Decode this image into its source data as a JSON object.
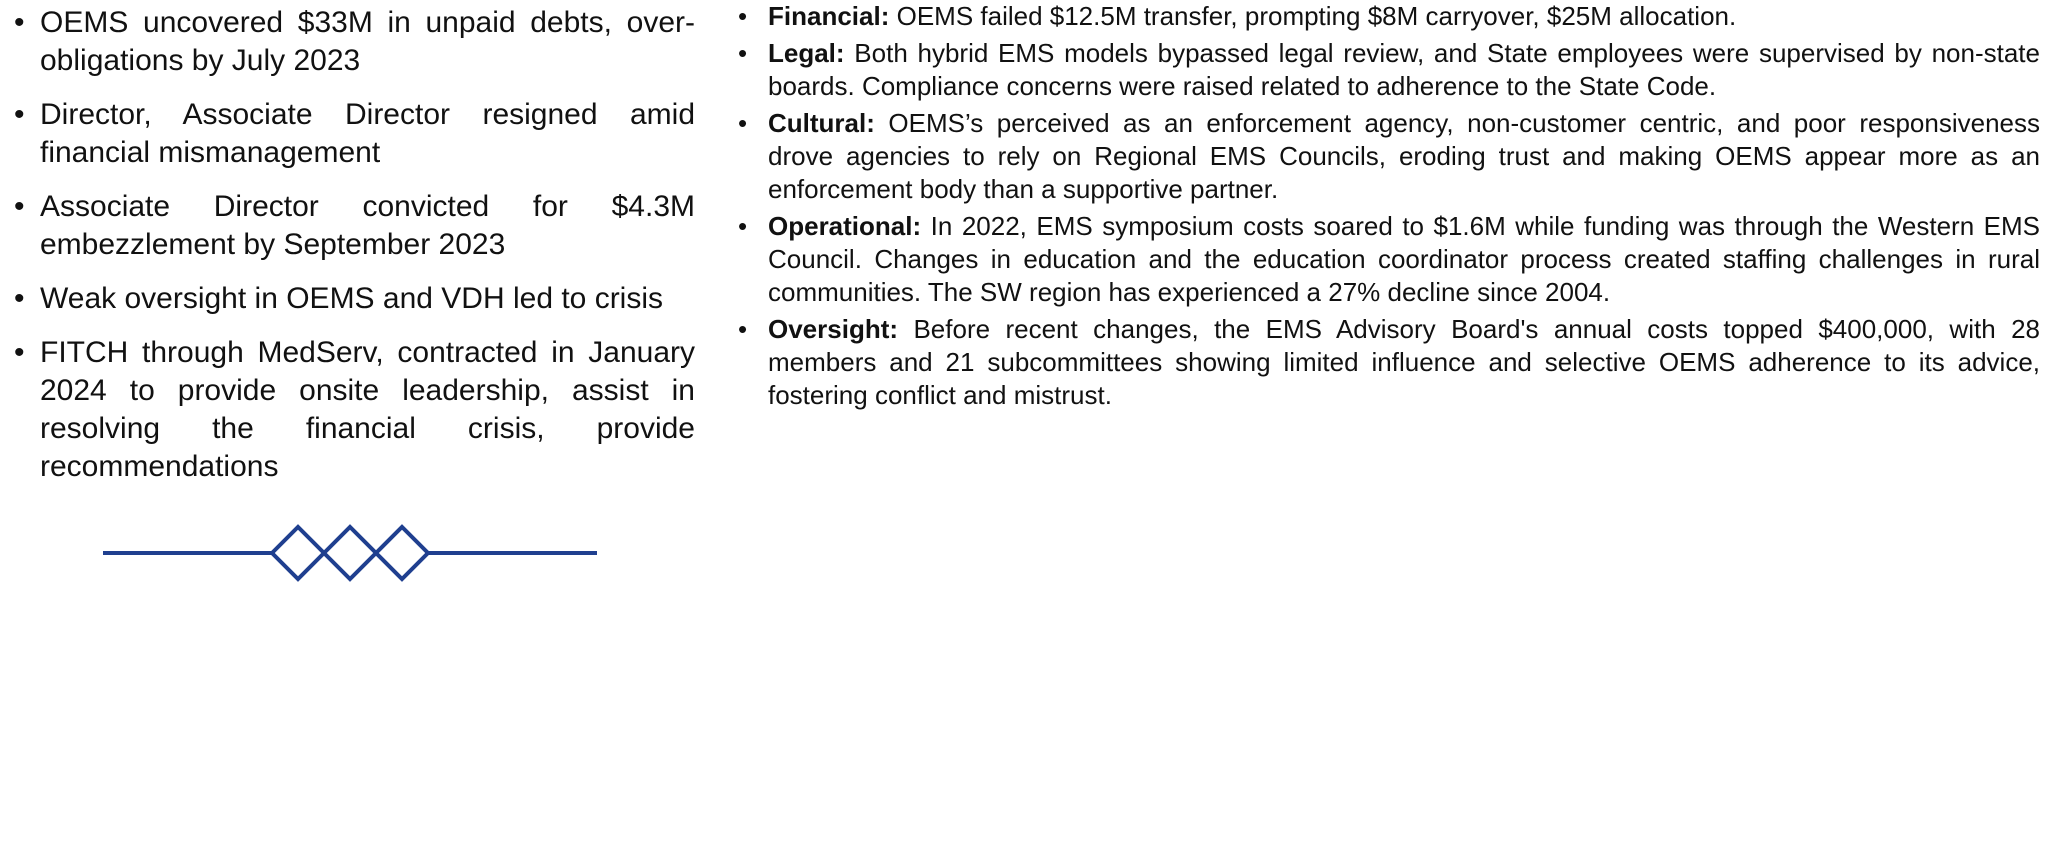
{
  "left_bullets": [
    "OEMS uncovered $33M in unpaid debts, over-obligations by July 2023",
    "Director, Associate Director resigned amid financial mismanagement",
    "Associate Director convicted for $4.3M embezzlement by September 2023",
    "Weak oversight in OEMS and VDH led to crisis",
    "FITCH through MedServ, contracted in January 2024 to provide onsite leadership, assist in resolving the financial crisis, provide recommendations"
  ],
  "right_bullets": [
    {
      "label": "Financial:",
      "text": "OEMS failed $12.5M transfer, prompting $8M carryover, $25M allocation."
    },
    {
      "label": "Legal:",
      "text": "Both hybrid EMS models bypassed legal review, and State employees were supervised by non-state boards. Compliance concerns were raised related to adherence to the State Code."
    },
    {
      "label": "Cultural:",
      "text": "OEMS’s perceived as an enforcement agency, non-customer centric, and poor responsiveness drove agencies to rely on Regional EMS Councils, eroding trust and making OEMS appear more as an enforcement body than a supportive partner."
    },
    {
      "label": "Operational:",
      "text": "In 2022, EMS symposium costs soared to $1.6M while funding was through the Western EMS Council. Changes in education and the education coordinator process created staffing challenges in rural communities. The SW region has experienced a 27% decline since 2004."
    },
    {
      "label": "Oversight:",
      "text": "Before recent changes, the EMS Advisory Board's annual costs topped $400,000, with 28 members and 21 subcommittees showing limited influence and selective OEMS adherence to its advice, fostering conflict and mistrust."
    }
  ]
}
